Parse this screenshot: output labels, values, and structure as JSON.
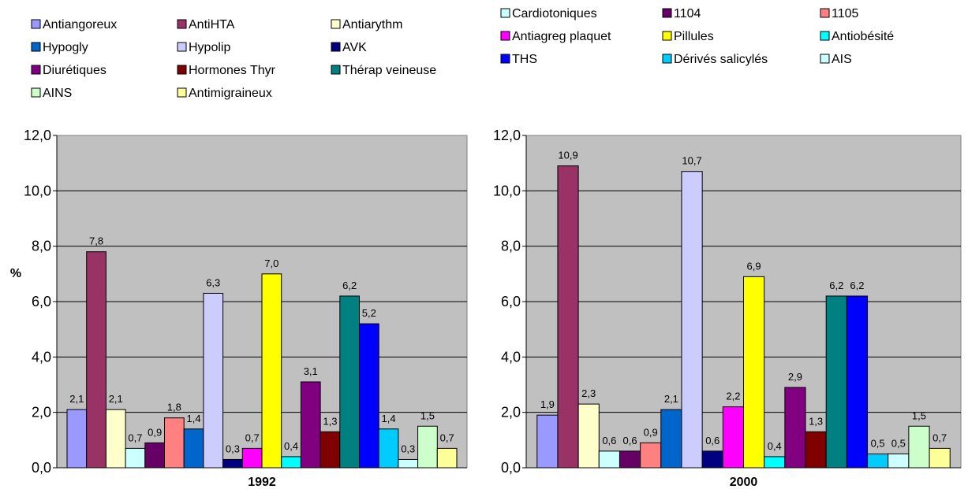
{
  "legend": [
    {
      "label": "Antiangoreux",
      "color": "#9999FF"
    },
    {
      "label": "AntiHTA",
      "color": "#993366"
    },
    {
      "label": "Antiarythm",
      "color": "#FFFFCC"
    },
    {
      "label": "Cardiotoniques",
      "color": "#CCFFFF"
    },
    {
      "label": "1104",
      "color": "#660066"
    },
    {
      "label": "1105",
      "color": "#FF8080"
    },
    {
      "label": "Hypogly",
      "color": "#0066CC"
    },
    {
      "label": "Hypolip",
      "color": "#CCCCFF"
    },
    {
      "label": "AVK",
      "color": "#000080"
    },
    {
      "label": "Antiagreg plaquet",
      "color": "#FF00FF"
    },
    {
      "label": "Pillules",
      "color": "#FFFF00"
    },
    {
      "label": "Antiobésité",
      "color": "#00FFFF"
    },
    {
      "label": "Diurétiques",
      "color": "#800080"
    },
    {
      "label": "Hormones Thyr",
      "color": "#800000"
    },
    {
      "label": "Thérap veineuse",
      "color": "#008080"
    },
    {
      "label": "THS",
      "color": "#0000FF"
    },
    {
      "label": "Dérivés salicylés",
      "color": "#00CCFF"
    },
    {
      "label": "AIS",
      "color": "#CCFFFF"
    },
    {
      "label": "AINS",
      "color": "#CCFFCC"
    },
    {
      "label": "Antimigraineux",
      "color": "#FFFF99"
    }
  ],
  "chart_data": [
    {
      "type": "bar",
      "xlabel": "1992",
      "ylabel": "%",
      "ylim": [
        0,
        12
      ],
      "yticks": [
        "0,0",
        "2,0",
        "4,0",
        "6,0",
        "8,0",
        "10,0",
        "12,0"
      ],
      "grid": true,
      "values": [
        2.1,
        7.8,
        2.1,
        0.7,
        0.9,
        1.8,
        1.4,
        6.3,
        0.3,
        0.7,
        7.0,
        0.4,
        3.1,
        1.3,
        6.2,
        5.2,
        1.4,
        0.3,
        1.5,
        0.7
      ],
      "labels": [
        "2,1",
        "7,8",
        "2,1",
        "0,7",
        "0,9",
        "1,8",
        "1,4",
        "6,3",
        "0,3",
        "0,7",
        "7,0",
        "0,4",
        "3,1",
        "1,3",
        "6,2",
        "5,2",
        "1,4",
        "0,3",
        "1,5",
        "0,7"
      ]
    },
    {
      "type": "bar",
      "xlabel": "2000",
      "ylabel": "",
      "ylim": [
        0,
        12
      ],
      "yticks": [
        "0,0",
        "2,0",
        "4,0",
        "6,0",
        "8,0",
        "10,0",
        "12,0"
      ],
      "grid": true,
      "values": [
        1.9,
        10.9,
        2.3,
        0.6,
        0.6,
        0.9,
        2.1,
        10.7,
        0.6,
        2.2,
        6.9,
        0.4,
        2.9,
        1.3,
        6.2,
        6.2,
        0.5,
        0.5,
        1.5,
        0.7
      ],
      "labels": [
        "1,9",
        "10,9",
        "2,3",
        "0,6",
        "0,6",
        "0,9",
        "2,1",
        "10,7",
        "0,6",
        "2,2",
        "6,9",
        "0,4",
        "2,9",
        "1,3",
        "6,2",
        "6,2",
        "0,5",
        "0,5",
        "1,5",
        "0,7"
      ]
    }
  ]
}
